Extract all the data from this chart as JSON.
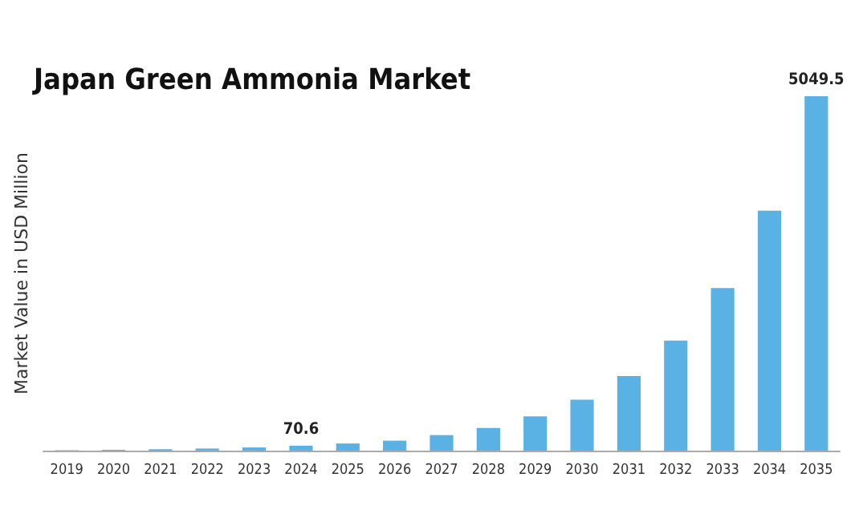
{
  "chart_data": {
    "type": "bar",
    "title": "Japan Green Ammonia Market",
    "ylabel": "Market Value in USD Million",
    "categories": [
      "2019",
      "2020",
      "2021",
      "2022",
      "2023",
      "2024",
      "2025",
      "2026",
      "2027",
      "2028",
      "2029",
      "2030",
      "2031",
      "2032",
      "2033",
      "2034",
      "2035"
    ],
    "values": [
      6,
      12,
      20,
      30,
      45,
      70.6,
      102,
      142,
      221,
      323,
      488,
      725,
      1063,
      1568,
      2316,
      3419,
      5049.5
    ],
    "value_labels": [
      null,
      null,
      null,
      null,
      null,
      "70.6",
      null,
      null,
      null,
      null,
      null,
      null,
      null,
      null,
      null,
      null,
      "5049.5"
    ],
    "color": "#5ab1e4"
  }
}
